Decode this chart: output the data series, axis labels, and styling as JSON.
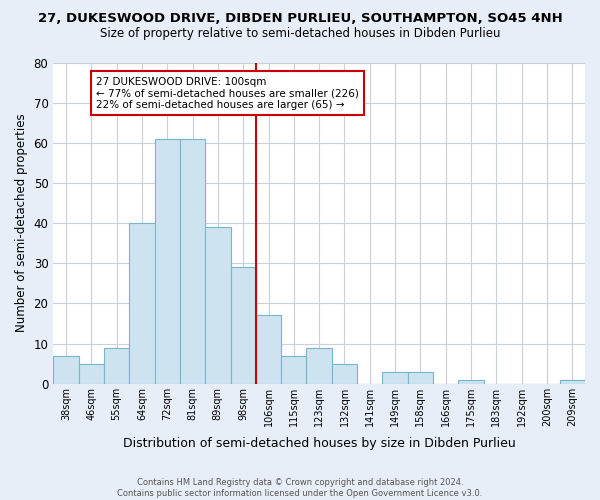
{
  "title": "27, DUKESWOOD DRIVE, DIBDEN PURLIEU, SOUTHAMPTON, SO45 4NH",
  "subtitle": "Size of property relative to semi-detached houses in Dibden Purlieu",
  "xlabel": "Distribution of semi-detached houses by size in Dibden Purlieu",
  "ylabel": "Number of semi-detached properties",
  "footer_line1": "Contains HM Land Registry data © Crown copyright and database right 2024.",
  "footer_line2": "Contains public sector information licensed under the Open Government Licence v3.0.",
  "bar_labels": [
    "38sqm",
    "46sqm",
    "55sqm",
    "64sqm",
    "72sqm",
    "81sqm",
    "89sqm",
    "98sqm",
    "106sqm",
    "115sqm",
    "123sqm",
    "132sqm",
    "141sqm",
    "149sqm",
    "158sqm",
    "166sqm",
    "175sqm",
    "183sqm",
    "192sqm",
    "200sqm",
    "209sqm"
  ],
  "bar_heights": [
    7,
    5,
    9,
    40,
    61,
    61,
    39,
    29,
    17,
    7,
    9,
    5,
    0,
    3,
    3,
    0,
    1,
    0,
    0,
    0,
    1
  ],
  "bar_color": "#cde4f0",
  "bar_edge_color": "#7ab3cc",
  "vline_x_index": 7.5,
  "vline_color": "#cc0000",
  "annotation_title": "27 DUKESWOOD DRIVE: 100sqm",
  "annotation_line1": "← 77% of semi-detached houses are smaller (226)",
  "annotation_line2": "22% of semi-detached houses are larger (65) →",
  "annotation_box_edge": "#cc0000",
  "ylim": [
    0,
    80
  ],
  "yticks": [
    0,
    10,
    20,
    30,
    40,
    50,
    60,
    70,
    80
  ],
  "background_color": "#e8eef8",
  "plot_bg_color": "#ffffff",
  "grid_color": "#c8d0dc"
}
